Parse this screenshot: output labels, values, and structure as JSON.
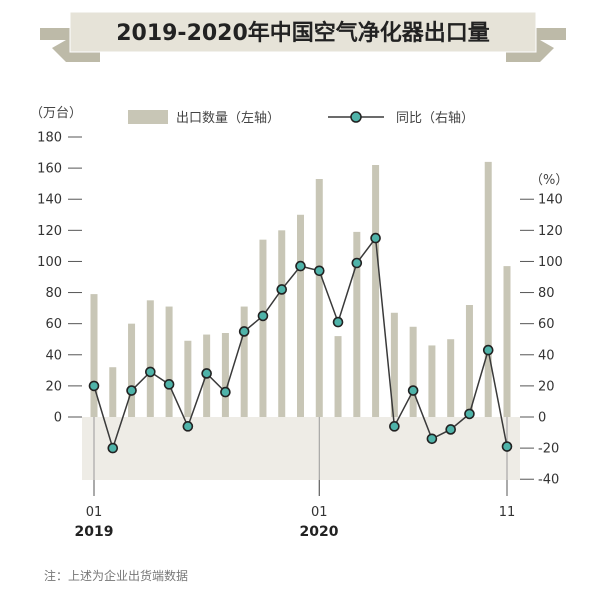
{
  "chart_data": {
    "type": "bar+line",
    "title": "2019-2020年中国空气净化器出口量",
    "left_unit": "（万台）",
    "right_unit": "（%）",
    "categories": [
      "2019-01",
      "2019-02",
      "2019-03",
      "2019-04",
      "2019-05",
      "2019-06",
      "2019-07",
      "2019-08",
      "2019-09",
      "2019-10",
      "2019-11",
      "2019-12",
      "2020-01",
      "2020-02",
      "2020-03",
      "2020-04",
      "2020-05",
      "2020-06",
      "2020-07",
      "2020-08",
      "2020-09",
      "2020-10",
      "2020-11"
    ],
    "series": [
      {
        "name": "出口数量（左轴）",
        "type": "bar",
        "axis": "left",
        "values": [
          79,
          32,
          60,
          75,
          71,
          49,
          53,
          54,
          71,
          114,
          120,
          130,
          153,
          52,
          119,
          162,
          67,
          58,
          46,
          50,
          72,
          164,
          97
        ]
      },
      {
        "name": "同比（右轴）",
        "type": "line",
        "axis": "right",
        "values": [
          20,
          -20,
          17,
          29,
          21,
          -6,
          28,
          16,
          55,
          65,
          82,
          97,
          94,
          61,
          99,
          115,
          -6,
          17,
          -14,
          -8,
          2,
          43,
          -19
        ]
      }
    ],
    "left_axis": {
      "min": 0,
      "max": 180,
      "ticks": [
        0,
        20,
        40,
        60,
        80,
        100,
        120,
        140,
        160,
        180
      ]
    },
    "right_axis": {
      "min": -40,
      "max": 140,
      "ticks": [
        -40,
        -20,
        0,
        20,
        40,
        60,
        80,
        100,
        120,
        140
      ]
    },
    "x_ticks": [
      {
        "index": 0,
        "label": "01",
        "year": "2019"
      },
      {
        "index": 12,
        "label": "01",
        "year": "2020"
      },
      {
        "index": 22,
        "label": "11",
        "year": ""
      }
    ],
    "legend": "top",
    "note": "注：上述为企业出货端数据",
    "colors": {
      "bar": "#c8c6b6",
      "line": "#3a3a3a",
      "marker": "#4fb3a9",
      "band": "#eeece6",
      "banner": "#e6e3d8",
      "ribbon": "#bdbaa8"
    }
  }
}
